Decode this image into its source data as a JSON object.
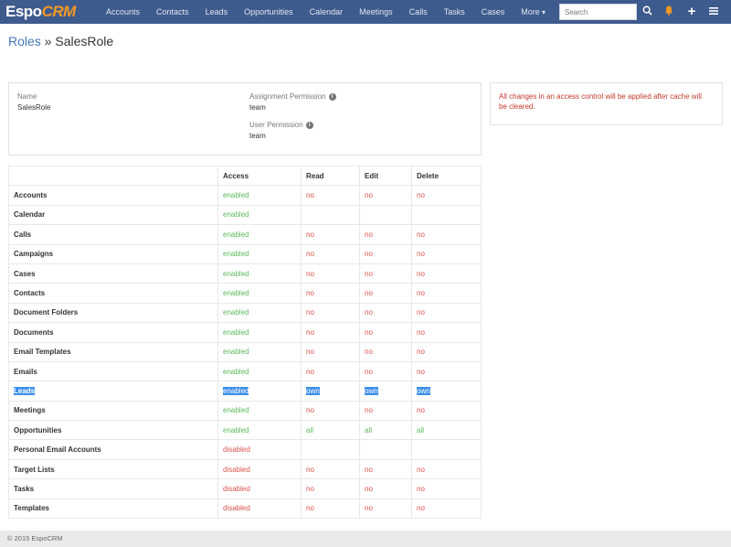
{
  "app": {
    "logo_main": "Espo",
    "logo_accent": "CRM"
  },
  "nav": {
    "items": [
      "Accounts",
      "Contacts",
      "Leads",
      "Opportunities",
      "Calendar",
      "Meetings",
      "Calls",
      "Tasks",
      "Cases",
      "More"
    ],
    "search_placeholder": "Search"
  },
  "breadcrumb": {
    "parent": "Roles",
    "separator": " » ",
    "current": "SalesRole"
  },
  "details": {
    "name_label": "Name",
    "name_value": "SalesRole",
    "assignment_label": "Assignment Permission",
    "assignment_value": "team",
    "user_label": "User Permission",
    "user_value": "team"
  },
  "notice": "All changes in an access control will be applied after cache will be cleared.",
  "table": {
    "headers": [
      "",
      "Access",
      "Read",
      "Edit",
      "Delete"
    ],
    "rows": [
      [
        "Accounts",
        "enabled",
        "no",
        "no",
        "no"
      ],
      [
        "Calendar",
        "enabled",
        "",
        "",
        ""
      ],
      [
        "Calls",
        "enabled",
        "no",
        "no",
        "no"
      ],
      [
        "Campaigns",
        "enabled",
        "no",
        "no",
        "no"
      ],
      [
        "Cases",
        "enabled",
        "no",
        "no",
        "no"
      ],
      [
        "Contacts",
        "enabled",
        "no",
        "no",
        "no"
      ],
      [
        "Document Folders",
        "enabled",
        "no",
        "no",
        "no"
      ],
      [
        "Documents",
        "enabled",
        "no",
        "no",
        "no"
      ],
      [
        "Email Templates",
        "enabled",
        "no",
        "no",
        "no"
      ],
      [
        "Emails",
        "enabled",
        "no",
        "no",
        "no"
      ],
      [
        "Leads",
        "enabled",
        "own",
        "own",
        "own"
      ],
      [
        "Meetings",
        "enabled",
        "no",
        "no",
        "no"
      ],
      [
        "Opportunities",
        "enabled",
        "all",
        "all",
        "all"
      ],
      [
        "Personal Email Accounts",
        "disabled",
        "",
        "",
        ""
      ],
      [
        "Target Lists",
        "disabled",
        "no",
        "no",
        "no"
      ],
      [
        "Tasks",
        "disabled",
        "no",
        "no",
        "no"
      ],
      [
        "Templates",
        "disabled",
        "no",
        "no",
        "no"
      ]
    ]
  },
  "footer": "© 2015 EspoCRM",
  "colors": {
    "navbar": "#3e5b8d",
    "accent": "#f39a22",
    "enabled": "#5cb85c",
    "no": "#d9534f",
    "selection": "#3b8ee8"
  }
}
